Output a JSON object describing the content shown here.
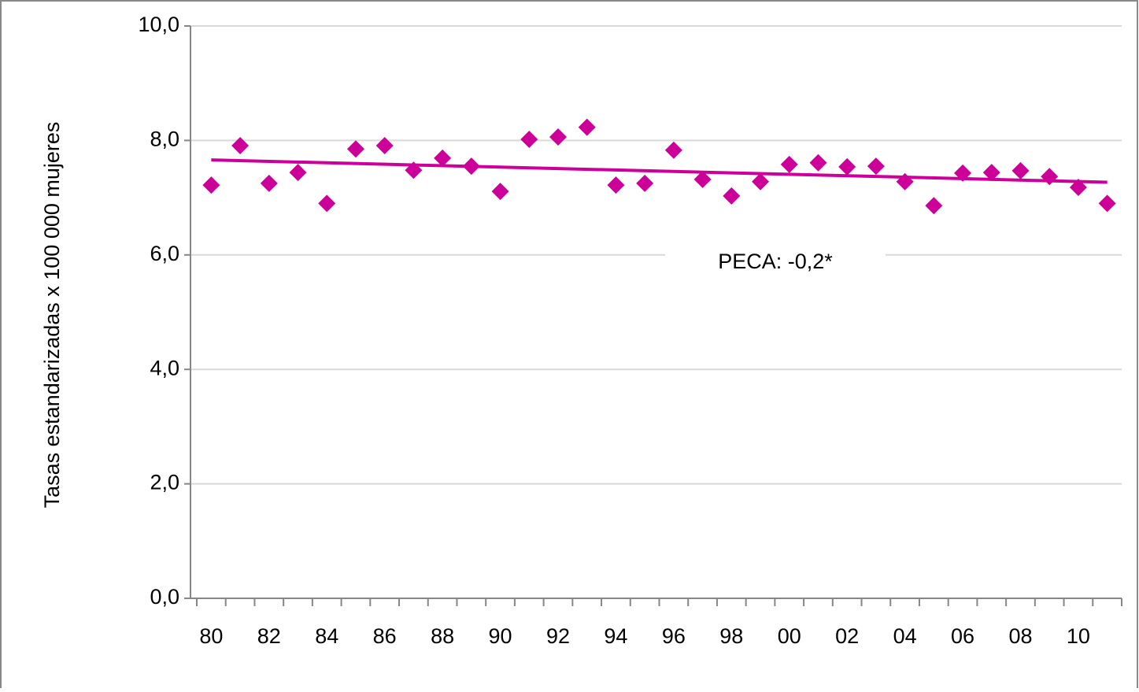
{
  "chart_data": {
    "type": "scatter",
    "y_label": "Tasas estandarizadas x 100 000 mujeres",
    "annotation": "PECA: -0,2*",
    "categories": [
      "80",
      null,
      "82",
      null,
      "84",
      null,
      "86",
      null,
      "88",
      null,
      "90",
      null,
      "92",
      null,
      "94",
      null,
      "96",
      null,
      "98",
      null,
      "00",
      null,
      "02",
      null,
      "04",
      null,
      "06",
      null,
      "08",
      null,
      "10",
      null
    ],
    "values": [
      7.22,
      7.91,
      7.25,
      7.44,
      6.9,
      7.85,
      7.91,
      7.48,
      7.69,
      7.55,
      7.11,
      8.02,
      8.06,
      8.23,
      7.22,
      7.25,
      7.83,
      7.32,
      7.03,
      7.28,
      7.58,
      7.61,
      7.54,
      7.55,
      7.28,
      6.86,
      7.43,
      7.44,
      7.47,
      7.37,
      7.18,
      6.9
    ],
    "trend_line": [
      7.66,
      7.27
    ],
    "color": "#cc0099",
    "ylim": [
      0,
      10
    ],
    "yticks": [
      {
        "value": 0,
        "label": "0,0"
      },
      {
        "value": 2,
        "label": "2,0"
      },
      {
        "value": 4,
        "label": "4,0"
      },
      {
        "value": 6,
        "label": "6,0"
      },
      {
        "value": 8,
        "label": "8,0"
      },
      {
        "value": 10,
        "label": "10,0"
      }
    ],
    "grid": true
  }
}
